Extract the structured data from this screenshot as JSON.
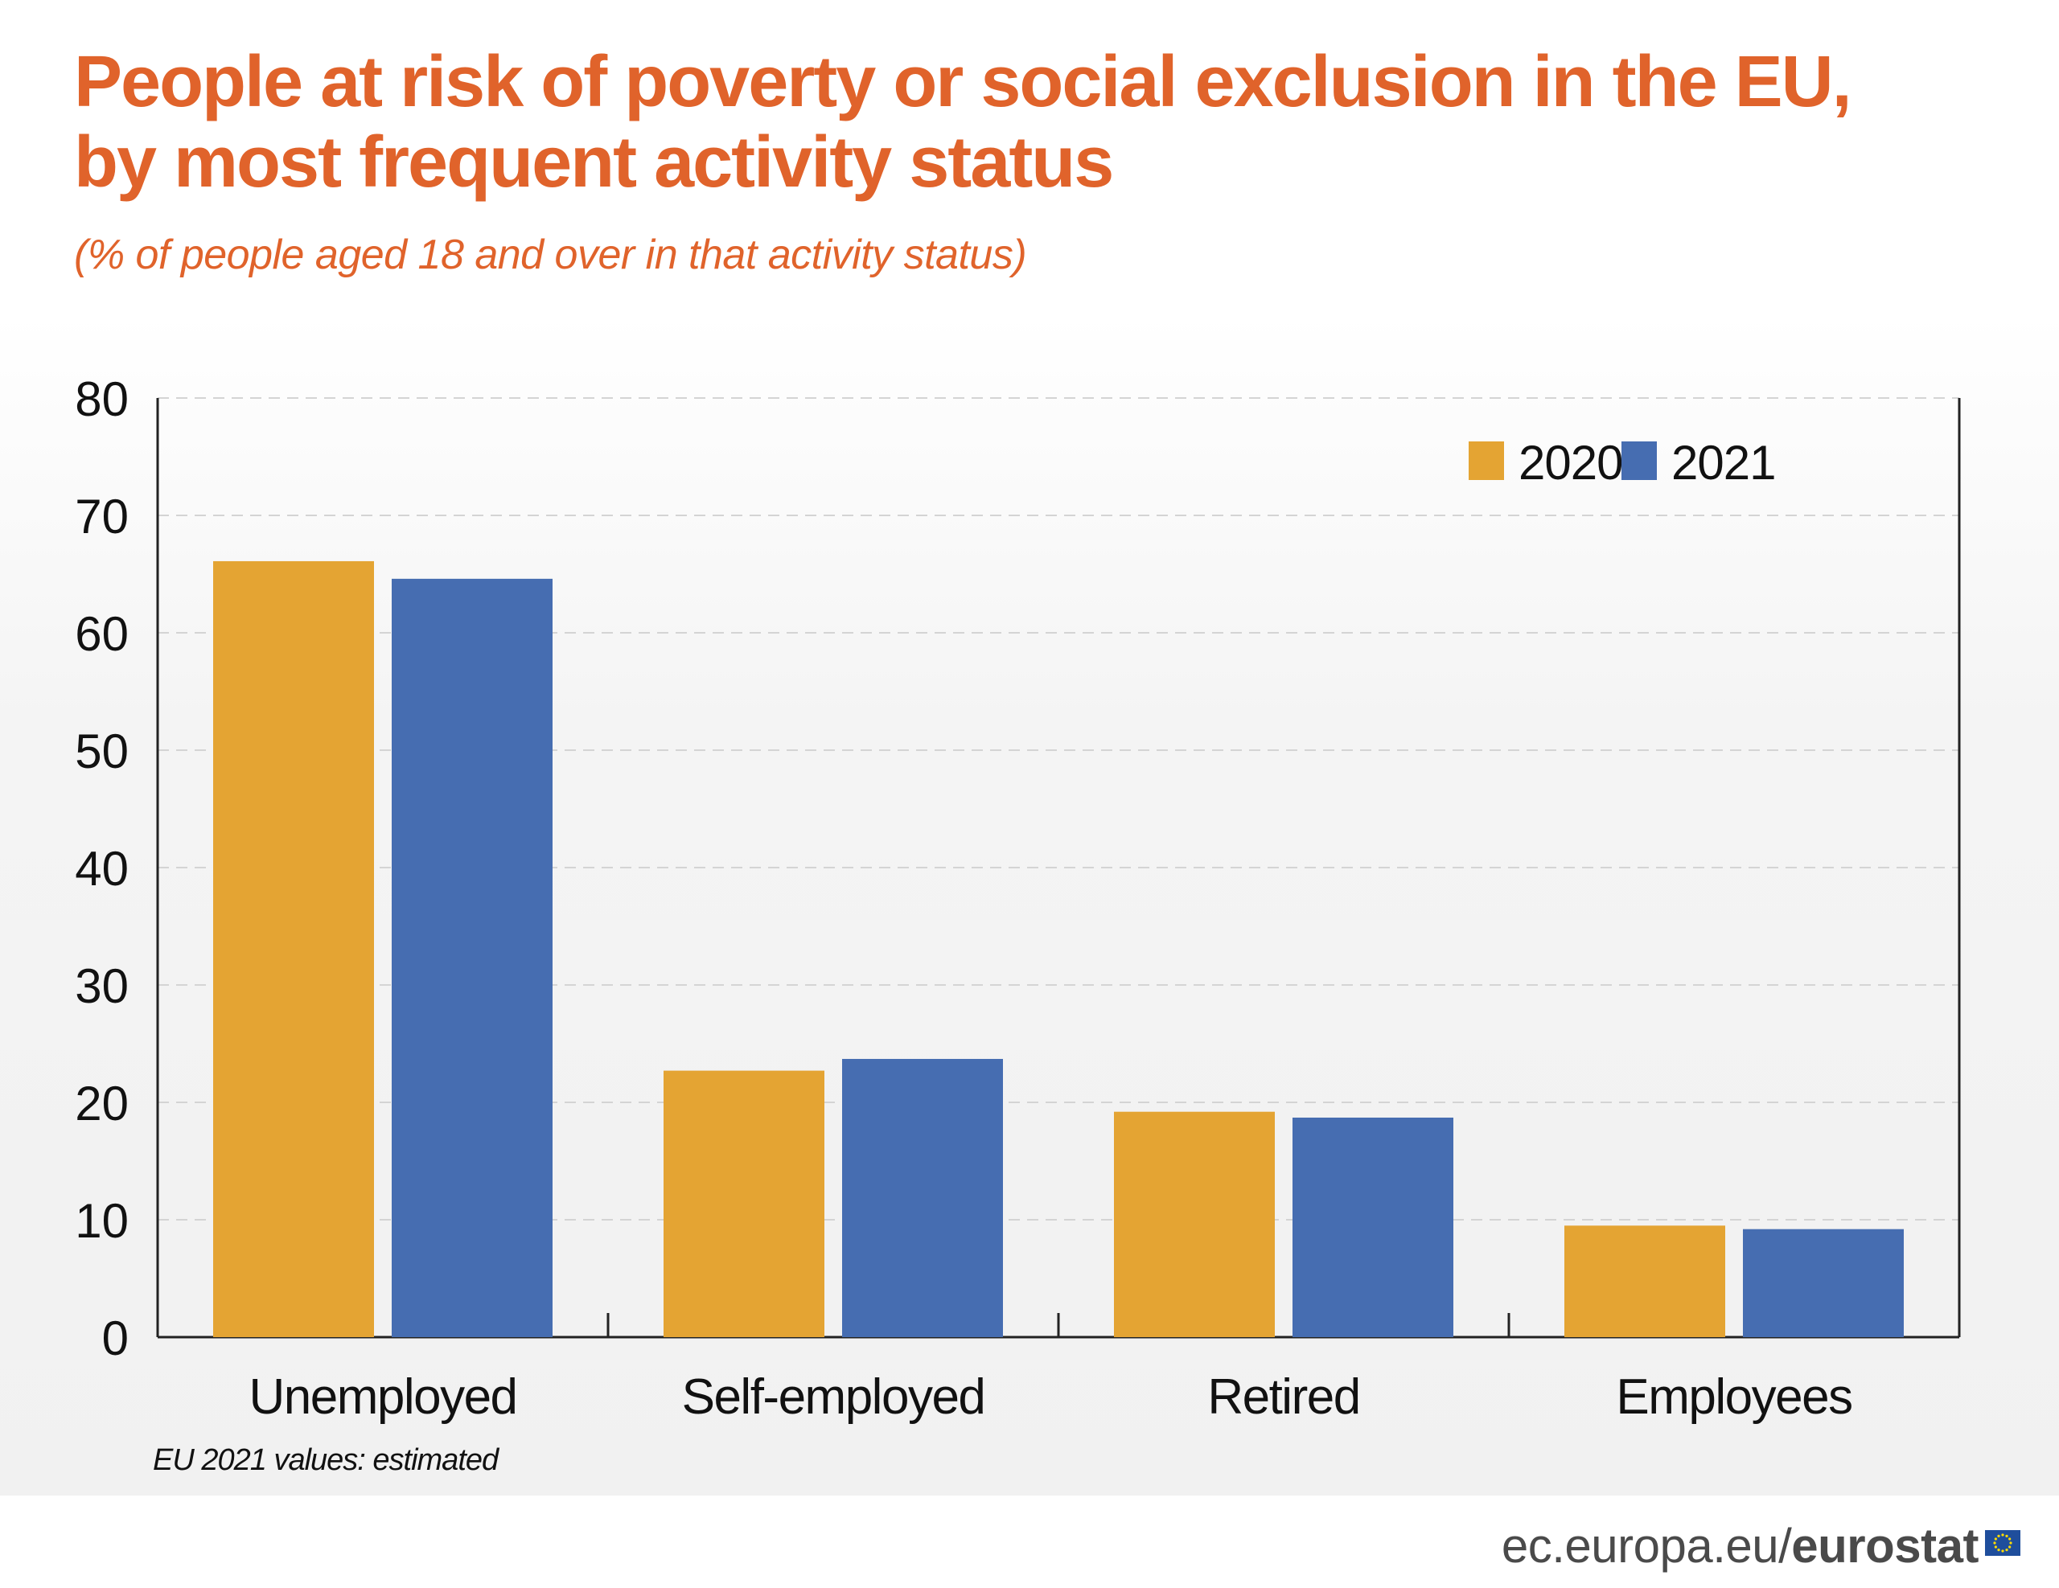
{
  "title_line1": "People at risk of poverty or social exclusion in the EU,",
  "title_line2": "by most frequent activity status",
  "subtitle": "(% of people aged 18 and over in that activity status)",
  "note": "EU 2021 values: estimated",
  "footer": {
    "site": "ec.europa.eu/",
    "brand": "eurostat",
    "flag_icon": "eu-flag-icon"
  },
  "colors": {
    "title": "#e0632b",
    "series_2020": "#e4a433",
    "series_2021": "#466db1"
  },
  "chart_data": {
    "type": "bar",
    "title": "People at risk of poverty or social exclusion in the EU, by most frequent activity status",
    "xlabel": "",
    "ylabel": "% of people aged 18 and over in that activity status",
    "categories": [
      "Unemployed",
      "Self-employed",
      "Retired",
      "Employees"
    ],
    "series": [
      {
        "name": "2020",
        "color": "#e4a433",
        "values": [
          66.1,
          22.7,
          19.2,
          9.5
        ]
      },
      {
        "name": "2021",
        "color": "#466db1",
        "values": [
          64.6,
          23.7,
          18.7,
          9.2
        ]
      }
    ],
    "ylim": [
      0,
      80
    ],
    "yticks": [
      0,
      10,
      20,
      30,
      40,
      50,
      60,
      70,
      80
    ],
    "grid": true,
    "legend": "top-right"
  }
}
